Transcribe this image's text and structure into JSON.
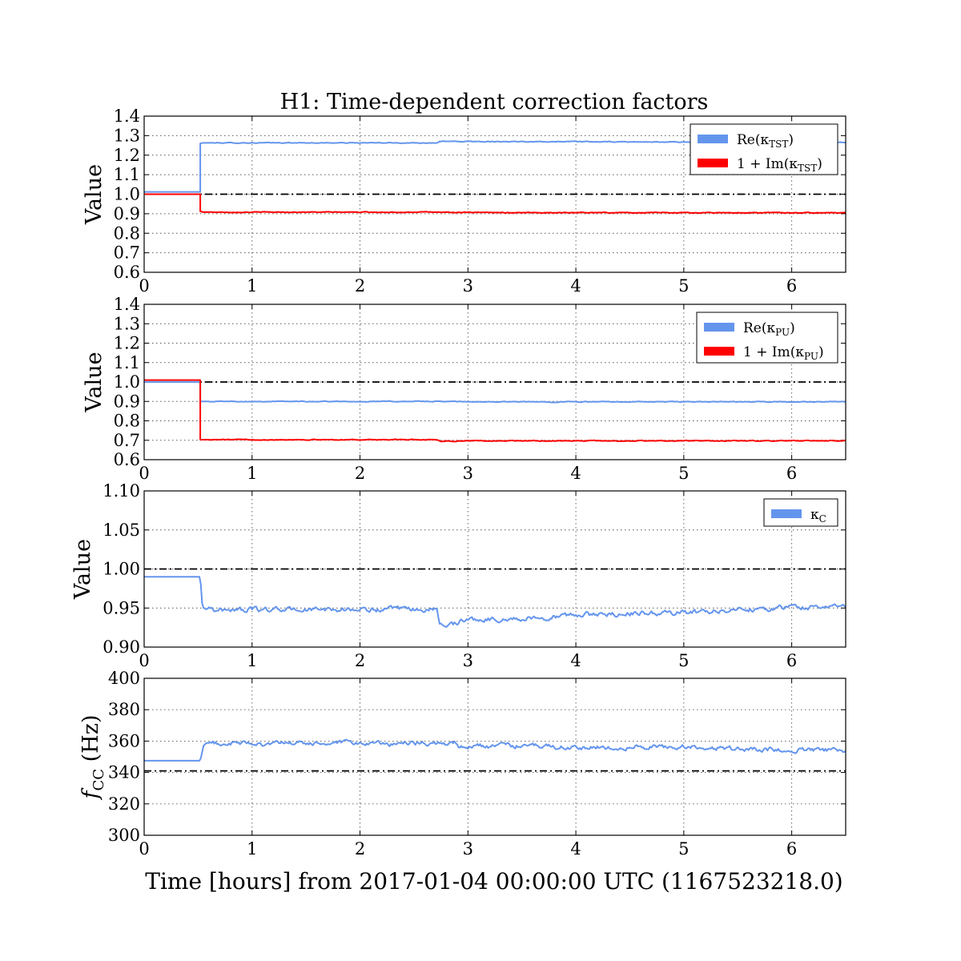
{
  "figure": {
    "title": "H1: Time-dependent correction factors",
    "xlabel": "Time [hours] from 2017-01-04 00:00:00 UTC (1167523218.0)"
  },
  "colors": {
    "blue": "#6495ed",
    "red": "#ff0000",
    "reference": "#000000"
  },
  "chart_data": [
    {
      "type": "line",
      "ylabel": "Value",
      "xlim": [
        0,
        6.5
      ],
      "ylim": [
        0.6,
        1.4
      ],
      "x_ticks": [
        "0",
        "1",
        "2",
        "3",
        "4",
        "5",
        "6"
      ],
      "y_ticks": [
        "0.6",
        "0.7",
        "0.8",
        "0.9",
        "1.0",
        "1.1",
        "1.2",
        "1.3",
        "1.4"
      ],
      "grid": true,
      "legend": "top-right",
      "reference_line": 1.0,
      "series": [
        {
          "name": "Re(κTST)",
          "legend_main": "Re(κ",
          "legend_sub": "TST",
          "legend_close": ")",
          "color": "blue",
          "points": [
            [
              0,
              1.012
            ],
            [
              0.52,
              1.012
            ],
            [
              0.52,
              1.26
            ],
            [
              0.55,
              1.263
            ],
            [
              2.72,
              1.263
            ],
            [
              2.73,
              1.27
            ],
            [
              3.5,
              1.27
            ],
            [
              4.5,
              1.268
            ],
            [
              5.5,
              1.266
            ],
            [
              6.5,
              1.266
            ]
          ],
          "noise": 0.0015
        },
        {
          "name": "1 + Im(κTST)",
          "legend_main": "1 + Im(κ",
          "legend_sub": "TST",
          "legend_close": ")",
          "color": "red",
          "points": [
            [
              0,
              1.0
            ],
            [
              0.52,
              1.0
            ],
            [
              0.52,
              0.912
            ],
            [
              0.55,
              0.908
            ],
            [
              2.72,
              0.908
            ],
            [
              3.0,
              0.906
            ],
            [
              6.5,
              0.905
            ]
          ],
          "noise": 0.0015
        }
      ]
    },
    {
      "type": "line",
      "ylabel": "Value",
      "xlim": [
        0,
        6.5
      ],
      "ylim": [
        0.6,
        1.4
      ],
      "x_ticks": [
        "0",
        "1",
        "2",
        "3",
        "4",
        "5",
        "6"
      ],
      "y_ticks": [
        "0.6",
        "0.7",
        "0.8",
        "0.9",
        "1.0",
        "1.1",
        "1.2",
        "1.3",
        "1.4"
      ],
      "grid": true,
      "legend": "top-right",
      "reference_line": 1.0,
      "series": [
        {
          "name": "Re(κPU)",
          "legend_main": "Re(κ",
          "legend_sub": "PU",
          "legend_close": ")",
          "color": "blue",
          "points": [
            [
              0,
              1.0
            ],
            [
              0.52,
              1.0
            ],
            [
              0.52,
              0.9
            ],
            [
              2.72,
              0.9
            ],
            [
              3.0,
              0.898
            ],
            [
              6.5,
              0.898
            ]
          ],
          "noise": 0.0015
        },
        {
          "name": "1 + Im(κPU)",
          "legend_main": "1 + Im(κ",
          "legend_sub": "PU",
          "legend_close": ")",
          "color": "red",
          "points": [
            [
              0,
              1.01
            ],
            [
              0.52,
              1.01
            ],
            [
              0.52,
              0.703
            ],
            [
              2.72,
              0.703
            ],
            [
              2.75,
              0.695
            ],
            [
              3.0,
              0.697
            ],
            [
              6.5,
              0.697
            ]
          ],
          "noise": 0.0015
        }
      ]
    },
    {
      "type": "line",
      "ylabel": "Value",
      "xlim": [
        0,
        6.5
      ],
      "ylim": [
        0.9,
        1.1
      ],
      "x_ticks": [
        "0",
        "1",
        "2",
        "3",
        "4",
        "5",
        "6"
      ],
      "y_ticks": [
        "0.90",
        "0.95",
        "1.00",
        "1.05",
        "1.10"
      ],
      "grid": true,
      "legend": "top-right",
      "reference_line": 1.0,
      "series": [
        {
          "name": "κC",
          "legend_main": "κ",
          "legend_sub": "C",
          "legend_close": "",
          "color": "blue",
          "points": [
            [
              0,
              0.99
            ],
            [
              0.52,
              0.99
            ],
            [
              0.54,
              0.951
            ],
            [
              0.58,
              0.948
            ],
            [
              0.6,
              0.951
            ],
            [
              0.65,
              0.948
            ],
            [
              2.72,
              0.948
            ],
            [
              2.73,
              0.93
            ],
            [
              2.9,
              0.93
            ],
            [
              2.92,
              0.935
            ],
            [
              3.3,
              0.936
            ],
            [
              3.5,
              0.936
            ],
            [
              4.0,
              0.941
            ],
            [
              4.5,
              0.943
            ],
            [
              5.0,
              0.944
            ],
            [
              5.5,
              0.948
            ],
            [
              6.0,
              0.951
            ],
            [
              6.5,
              0.952
            ]
          ],
          "noise": 0.0025
        }
      ]
    },
    {
      "type": "line",
      "ylabel": "fCC (Hz)",
      "ylabel_main": "f",
      "ylabel_sub": "CC",
      "ylabel_rest": " (Hz)",
      "xlim": [
        0,
        6.5
      ],
      "ylim": [
        300,
        400
      ],
      "x_ticks": [
        "0",
        "1",
        "2",
        "3",
        "4",
        "5",
        "6"
      ],
      "y_ticks": [
        "300",
        "320",
        "340",
        "360",
        "380",
        "400"
      ],
      "grid": true,
      "reference_line": 341,
      "series": [
        {
          "name": "fCC",
          "color": "blue",
          "points": [
            [
              0,
              347.5
            ],
            [
              0.52,
              347.5
            ],
            [
              0.55,
              357
            ],
            [
              0.58,
              359
            ],
            [
              0.62,
              358.5
            ],
            [
              2.72,
              358.5
            ],
            [
              2.9,
              358.5
            ],
            [
              2.92,
              356.5
            ],
            [
              3.5,
              357
            ],
            [
              4.0,
              356
            ],
            [
              4.5,
              356
            ],
            [
              5.0,
              356.5
            ],
            [
              5.5,
              355
            ],
            [
              6.0,
              354.5
            ],
            [
              6.5,
              354
            ]
          ],
          "noise": 1.2
        }
      ]
    }
  ]
}
